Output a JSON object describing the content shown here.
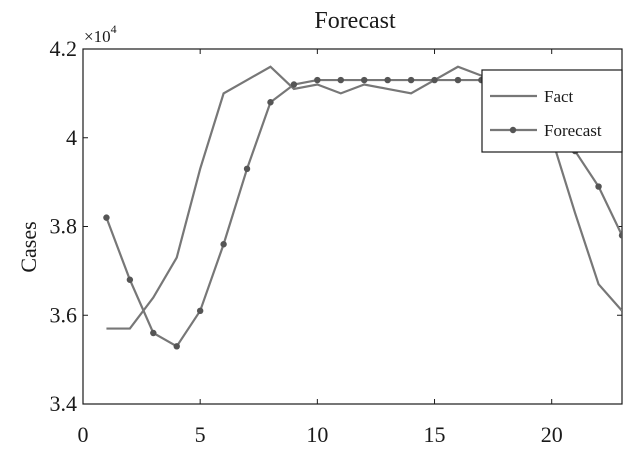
{
  "chart_data": {
    "type": "line",
    "title": "Forecast",
    "xlabel": "",
    "ylabel": "Cases",
    "y_multiplier_label": "×10",
    "y_multiplier_exponent": "4",
    "xlim": [
      0,
      23
    ],
    "ylim": [
      3.4,
      4.2
    ],
    "x_ticks": [
      0,
      5,
      10,
      15,
      20
    ],
    "x_tick_labels": [
      "0",
      "5",
      "10",
      "15",
      "20"
    ],
    "y_ticks": [
      3.4,
      3.6,
      3.8,
      4.0,
      4.2
    ],
    "y_tick_labels": [
      "3.4",
      "3.6",
      "3.8",
      "4",
      "4.2"
    ],
    "grid": false,
    "legend_position": "top-right",
    "series": [
      {
        "name": "Fact",
        "color": "#777777",
        "marker": "none",
        "x": [
          1,
          2,
          3,
          4,
          5,
          6,
          7,
          8,
          9,
          10,
          11,
          12,
          13,
          14,
          15,
          16,
          17,
          18,
          19,
          20,
          21,
          22,
          23
        ],
        "y": [
          3.57,
          3.57,
          3.64,
          3.73,
          3.93,
          4.1,
          4.13,
          4.16,
          4.11,
          4.12,
          4.1,
          4.12,
          4.11,
          4.1,
          4.13,
          4.16,
          4.14,
          4.12,
          4.1,
          4.0,
          3.83,
          3.67,
          3.61
        ]
      },
      {
        "name": "Forecast",
        "color": "#777777",
        "marker": "dot",
        "x": [
          1,
          2,
          3,
          4,
          5,
          6,
          7,
          8,
          9,
          10,
          11,
          12,
          13,
          14,
          15,
          16,
          17,
          18,
          19,
          20,
          21,
          22,
          23
        ],
        "y": [
          3.82,
          3.68,
          3.56,
          3.53,
          3.61,
          3.76,
          3.93,
          4.08,
          4.12,
          4.13,
          4.13,
          4.13,
          4.13,
          4.13,
          4.13,
          4.13,
          4.13,
          4.12,
          4.11,
          4.07,
          3.97,
          3.89,
          3.78
        ]
      }
    ]
  }
}
